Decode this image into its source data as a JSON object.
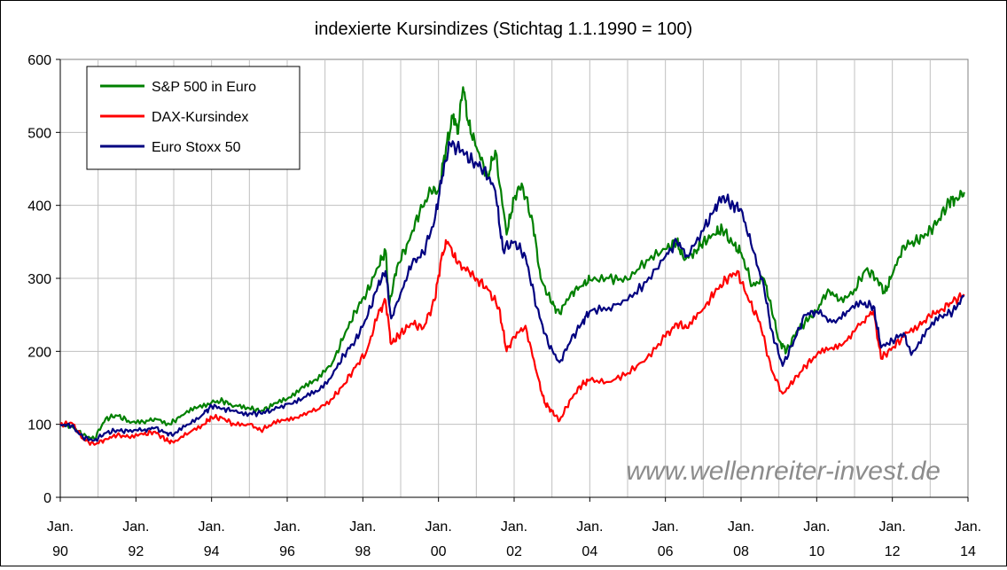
{
  "chart_data": {
    "type": "line",
    "title": "indexierte Kursindizes (Stichtag 1.1.1990 = 100)",
    "watermark": "www.wellenreiter-invest.de",
    "xlabel": "",
    "ylabel": "",
    "ylim": [
      0,
      600
    ],
    "yticks": [
      "0",
      "100",
      "200",
      "300",
      "400",
      "500",
      "600"
    ],
    "xlim": [
      1990,
      2014
    ],
    "xticks": [
      {
        "top": "Jan.",
        "bottom": "90",
        "year": 1990
      },
      {
        "top": "Jan.",
        "bottom": "92",
        "year": 1992
      },
      {
        "top": "Jan.",
        "bottom": "94",
        "year": 1994
      },
      {
        "top": "Jan.",
        "bottom": "96",
        "year": 1996
      },
      {
        "top": "Jan.",
        "bottom": "98",
        "year": 1998
      },
      {
        "top": "Jan.",
        "bottom": "00",
        "year": 2000
      },
      {
        "top": "Jan.",
        "bottom": "02",
        "year": 2002
      },
      {
        "top": "Jan.",
        "bottom": "04",
        "year": 2004
      },
      {
        "top": "Jan.",
        "bottom": "06",
        "year": 2006
      },
      {
        "top": "Jan.",
        "bottom": "08",
        "year": 2008
      },
      {
        "top": "Jan.",
        "bottom": "10",
        "year": 2010
      },
      {
        "top": "Jan.",
        "bottom": "12",
        "year": 2012
      },
      {
        "top": "Jan.",
        "bottom": "14",
        "year": 2014
      }
    ],
    "grid": true,
    "legend_position": "top-left",
    "plot_background": "#ffffff",
    "grid_color": "#c0c0c0",
    "series": [
      {
        "name": "S&P 500 in Euro",
        "color": "#008000",
        "points": [
          [
            1990.0,
            100
          ],
          [
            1990.3,
            98
          ],
          [
            1990.6,
            85
          ],
          [
            1990.9,
            80
          ],
          [
            1991.2,
            108
          ],
          [
            1991.5,
            112
          ],
          [
            1991.8,
            105
          ],
          [
            1992.2,
            103
          ],
          [
            1992.5,
            108
          ],
          [
            1992.9,
            100
          ],
          [
            1993.2,
            112
          ],
          [
            1993.6,
            122
          ],
          [
            1994.0,
            130
          ],
          [
            1994.3,
            132
          ],
          [
            1994.6,
            125
          ],
          [
            1995.0,
            122
          ],
          [
            1995.3,
            118
          ],
          [
            1995.6,
            125
          ],
          [
            1996.0,
            135
          ],
          [
            1996.4,
            152
          ],
          [
            1996.8,
            160
          ],
          [
            1997.2,
            185
          ],
          [
            1997.5,
            220
          ],
          [
            1997.8,
            255
          ],
          [
            1998.1,
            280
          ],
          [
            1998.4,
            315
          ],
          [
            1998.6,
            338
          ],
          [
            1998.7,
            265
          ],
          [
            1998.9,
            315
          ],
          [
            1999.2,
            350
          ],
          [
            1999.5,
            390
          ],
          [
            1999.8,
            420
          ],
          [
            2000.0,
            420
          ],
          [
            2000.2,
            480
          ],
          [
            2000.4,
            525
          ],
          [
            2000.5,
            498
          ],
          [
            2000.65,
            562
          ],
          [
            2000.8,
            510
          ],
          [
            2001.0,
            480
          ],
          [
            2001.3,
            440
          ],
          [
            2001.5,
            475
          ],
          [
            2001.8,
            360
          ],
          [
            2002.0,
            410
          ],
          [
            2002.2,
            430
          ],
          [
            2002.5,
            375
          ],
          [
            2002.7,
            300
          ],
          [
            2003.0,
            265
          ],
          [
            2003.2,
            252
          ],
          [
            2003.5,
            280
          ],
          [
            2003.8,
            290
          ],
          [
            2004.0,
            298
          ],
          [
            2004.5,
            300
          ],
          [
            2005.0,
            298
          ],
          [
            2005.5,
            325
          ],
          [
            2006.0,
            340
          ],
          [
            2006.3,
            350
          ],
          [
            2006.5,
            325
          ],
          [
            2006.8,
            338
          ],
          [
            2007.0,
            350
          ],
          [
            2007.3,
            360
          ],
          [
            2007.5,
            368
          ],
          [
            2007.8,
            345
          ],
          [
            2008.0,
            335
          ],
          [
            2008.3,
            290
          ],
          [
            2008.6,
            300
          ],
          [
            2008.8,
            260
          ],
          [
            2009.0,
            215
          ],
          [
            2009.2,
            200
          ],
          [
            2009.5,
            230
          ],
          [
            2009.8,
            245
          ],
          [
            2010.0,
            255
          ],
          [
            2010.3,
            285
          ],
          [
            2010.6,
            270
          ],
          [
            2011.0,
            285
          ],
          [
            2011.3,
            312
          ],
          [
            2011.6,
            300
          ],
          [
            2011.8,
            280
          ],
          [
            2012.0,
            305
          ],
          [
            2012.3,
            345
          ],
          [
            2012.6,
            350
          ],
          [
            2012.9,
            360
          ],
          [
            2013.2,
            378
          ],
          [
            2013.5,
            405
          ],
          [
            2013.7,
            410
          ],
          [
            2013.9,
            418
          ]
        ]
      },
      {
        "name": "DAX-Kursindex",
        "color": "#ff0000",
        "points": [
          [
            1990.0,
            100
          ],
          [
            1990.3,
            102
          ],
          [
            1990.6,
            80
          ],
          [
            1990.9,
            72
          ],
          [
            1991.2,
            80
          ],
          [
            1991.5,
            85
          ],
          [
            1991.8,
            83
          ],
          [
            1992.2,
            86
          ],
          [
            1992.5,
            90
          ],
          [
            1992.8,
            78
          ],
          [
            1993.0,
            75
          ],
          [
            1993.4,
            88
          ],
          [
            1993.8,
            100
          ],
          [
            1994.0,
            110
          ],
          [
            1994.3,
            108
          ],
          [
            1994.6,
            100
          ],
          [
            1995.0,
            100
          ],
          [
            1995.3,
            92
          ],
          [
            1995.6,
            100
          ],
          [
            1996.0,
            108
          ],
          [
            1996.4,
            112
          ],
          [
            1996.8,
            120
          ],
          [
            1997.2,
            135
          ],
          [
            1997.5,
            155
          ],
          [
            1997.8,
            178
          ],
          [
            1998.1,
            200
          ],
          [
            1998.4,
            250
          ],
          [
            1998.6,
            270
          ],
          [
            1998.75,
            210
          ],
          [
            1999.0,
            225
          ],
          [
            1999.3,
            238
          ],
          [
            1999.6,
            232
          ],
          [
            1999.9,
            270
          ],
          [
            2000.1,
            335
          ],
          [
            2000.25,
            350
          ],
          [
            2000.5,
            320
          ],
          [
            2000.8,
            310
          ],
          [
            2001.0,
            300
          ],
          [
            2001.3,
            285
          ],
          [
            2001.6,
            260
          ],
          [
            2001.8,
            200
          ],
          [
            2002.0,
            220
          ],
          [
            2002.3,
            235
          ],
          [
            2002.6,
            170
          ],
          [
            2002.8,
            130
          ],
          [
            2003.0,
            118
          ],
          [
            2003.2,
            105
          ],
          [
            2003.5,
            135
          ],
          [
            2003.8,
            155
          ],
          [
            2004.0,
            160
          ],
          [
            2004.5,
            158
          ],
          [
            2005.0,
            170
          ],
          [
            2005.5,
            190
          ],
          [
            2006.0,
            220
          ],
          [
            2006.3,
            238
          ],
          [
            2006.6,
            232
          ],
          [
            2007.0,
            258
          ],
          [
            2007.3,
            280
          ],
          [
            2007.6,
            298
          ],
          [
            2007.9,
            310
          ],
          [
            2008.2,
            270
          ],
          [
            2008.5,
            240
          ],
          [
            2008.8,
            175
          ],
          [
            2009.1,
            142
          ],
          [
            2009.4,
            160
          ],
          [
            2009.7,
            180
          ],
          [
            2010.0,
            195
          ],
          [
            2010.4,
            205
          ],
          [
            2010.8,
            215
          ],
          [
            2011.2,
            240
          ],
          [
            2011.5,
            255
          ],
          [
            2011.7,
            190
          ],
          [
            2012.0,
            205
          ],
          [
            2012.3,
            220
          ],
          [
            2012.7,
            235
          ],
          [
            2013.0,
            248
          ],
          [
            2013.3,
            258
          ],
          [
            2013.6,
            268
          ],
          [
            2013.9,
            278
          ]
        ]
      },
      {
        "name": "Euro Stoxx 50",
        "color": "#000080",
        "points": [
          [
            1990.0,
            100
          ],
          [
            1990.3,
            98
          ],
          [
            1990.6,
            82
          ],
          [
            1990.9,
            78
          ],
          [
            1991.2,
            88
          ],
          [
            1991.5,
            92
          ],
          [
            1991.8,
            90
          ],
          [
            1992.2,
            92
          ],
          [
            1992.5,
            95
          ],
          [
            1992.8,
            88
          ],
          [
            1993.0,
            86
          ],
          [
            1993.4,
            100
          ],
          [
            1993.8,
            115
          ],
          [
            1994.0,
            125
          ],
          [
            1994.3,
            122
          ],
          [
            1994.6,
            118
          ],
          [
            1995.0,
            115
          ],
          [
            1995.3,
            115
          ],
          [
            1995.6,
            120
          ],
          [
            1996.0,
            128
          ],
          [
            1996.4,
            135
          ],
          [
            1996.8,
            145
          ],
          [
            1997.2,
            168
          ],
          [
            1997.5,
            195
          ],
          [
            1997.8,
            215
          ],
          [
            1998.1,
            245
          ],
          [
            1998.4,
            290
          ],
          [
            1998.6,
            310
          ],
          [
            1998.75,
            245
          ],
          [
            1999.0,
            280
          ],
          [
            1999.3,
            320
          ],
          [
            1999.6,
            335
          ],
          [
            1999.9,
            380
          ],
          [
            2000.1,
            440
          ],
          [
            2000.3,
            485
          ],
          [
            2000.6,
            475
          ],
          [
            2000.9,
            460
          ],
          [
            2001.2,
            450
          ],
          [
            2001.5,
            420
          ],
          [
            2001.7,
            340
          ],
          [
            2002.0,
            350
          ],
          [
            2002.3,
            330
          ],
          [
            2002.6,
            260
          ],
          [
            2002.9,
            210
          ],
          [
            2003.2,
            185
          ],
          [
            2003.5,
            215
          ],
          [
            2003.8,
            240
          ],
          [
            2004.0,
            255
          ],
          [
            2004.5,
            260
          ],
          [
            2005.0,
            270
          ],
          [
            2005.5,
            295
          ],
          [
            2006.0,
            330
          ],
          [
            2006.3,
            350
          ],
          [
            2006.6,
            330
          ],
          [
            2007.0,
            365
          ],
          [
            2007.3,
            395
          ],
          [
            2007.5,
            412
          ],
          [
            2007.8,
            400
          ],
          [
            2008.0,
            395
          ],
          [
            2008.3,
            340
          ],
          [
            2008.6,
            290
          ],
          [
            2008.8,
            230
          ],
          [
            2009.1,
            180
          ],
          [
            2009.4,
            215
          ],
          [
            2009.7,
            250
          ],
          [
            2010.0,
            255
          ],
          [
            2010.4,
            240
          ],
          [
            2010.8,
            255
          ],
          [
            2011.2,
            265
          ],
          [
            2011.5,
            262
          ],
          [
            2011.7,
            205
          ],
          [
            2012.0,
            215
          ],
          [
            2012.3,
            225
          ],
          [
            2012.5,
            195
          ],
          [
            2012.9,
            230
          ],
          [
            2013.3,
            248
          ],
          [
            2013.6,
            255
          ],
          [
            2013.9,
            275
          ]
        ]
      }
    ]
  }
}
